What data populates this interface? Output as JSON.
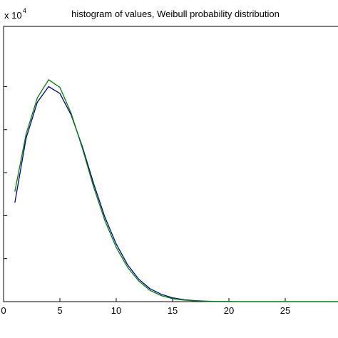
{
  "chart_data": {
    "type": "line",
    "title": "histogram of values, Weibull probability distribution",
    "y_multiplier": {
      "base": "x 10",
      "exponent": "4"
    },
    "xlim": [
      0,
      30
    ],
    "ylim": [
      0,
      3.2
    ],
    "x_ticks": [
      0,
      5,
      10,
      15,
      20,
      25
    ],
    "x_tick_labels": [
      "0",
      "5",
      "10",
      "15",
      "20",
      "25"
    ],
    "y_ticks": [
      0.5,
      1,
      1.5,
      2,
      2.5
    ],
    "grid": false,
    "series": [
      {
        "color": "#00008b",
        "x": [
          1,
          2,
          3,
          4,
          5,
          6,
          7,
          8,
          9,
          10,
          11,
          12,
          13,
          14,
          15,
          16,
          17,
          18,
          19,
          20,
          21,
          22,
          23,
          24,
          25,
          26,
          27,
          28,
          29,
          30
        ],
        "y": [
          1.15,
          1.9,
          2.32,
          2.5,
          2.42,
          2.17,
          1.8,
          1.37,
          0.98,
          0.67,
          0.43,
          0.26,
          0.15,
          0.085,
          0.045,
          0.022,
          0.011,
          0.005,
          0.002,
          0.001,
          0,
          0,
          0,
          0,
          0,
          0,
          0,
          0,
          0,
          0
        ]
      },
      {
        "color": "#008000",
        "x": [
          1,
          2,
          3,
          4,
          5,
          6,
          7,
          8,
          9,
          10,
          11,
          12,
          13,
          14,
          15,
          16,
          17,
          18,
          19,
          20,
          21,
          22,
          23,
          24,
          25,
          26,
          27,
          28,
          29,
          30
        ],
        "y": [
          1.28,
          1.95,
          2.37,
          2.58,
          2.49,
          2.19,
          1.78,
          1.33,
          0.94,
          0.63,
          0.4,
          0.24,
          0.13,
          0.07,
          0.035,
          0.017,
          0.008,
          0.003,
          0.001,
          0,
          0,
          0,
          0,
          0,
          0,
          0,
          0,
          0,
          0,
          0
        ]
      }
    ]
  }
}
